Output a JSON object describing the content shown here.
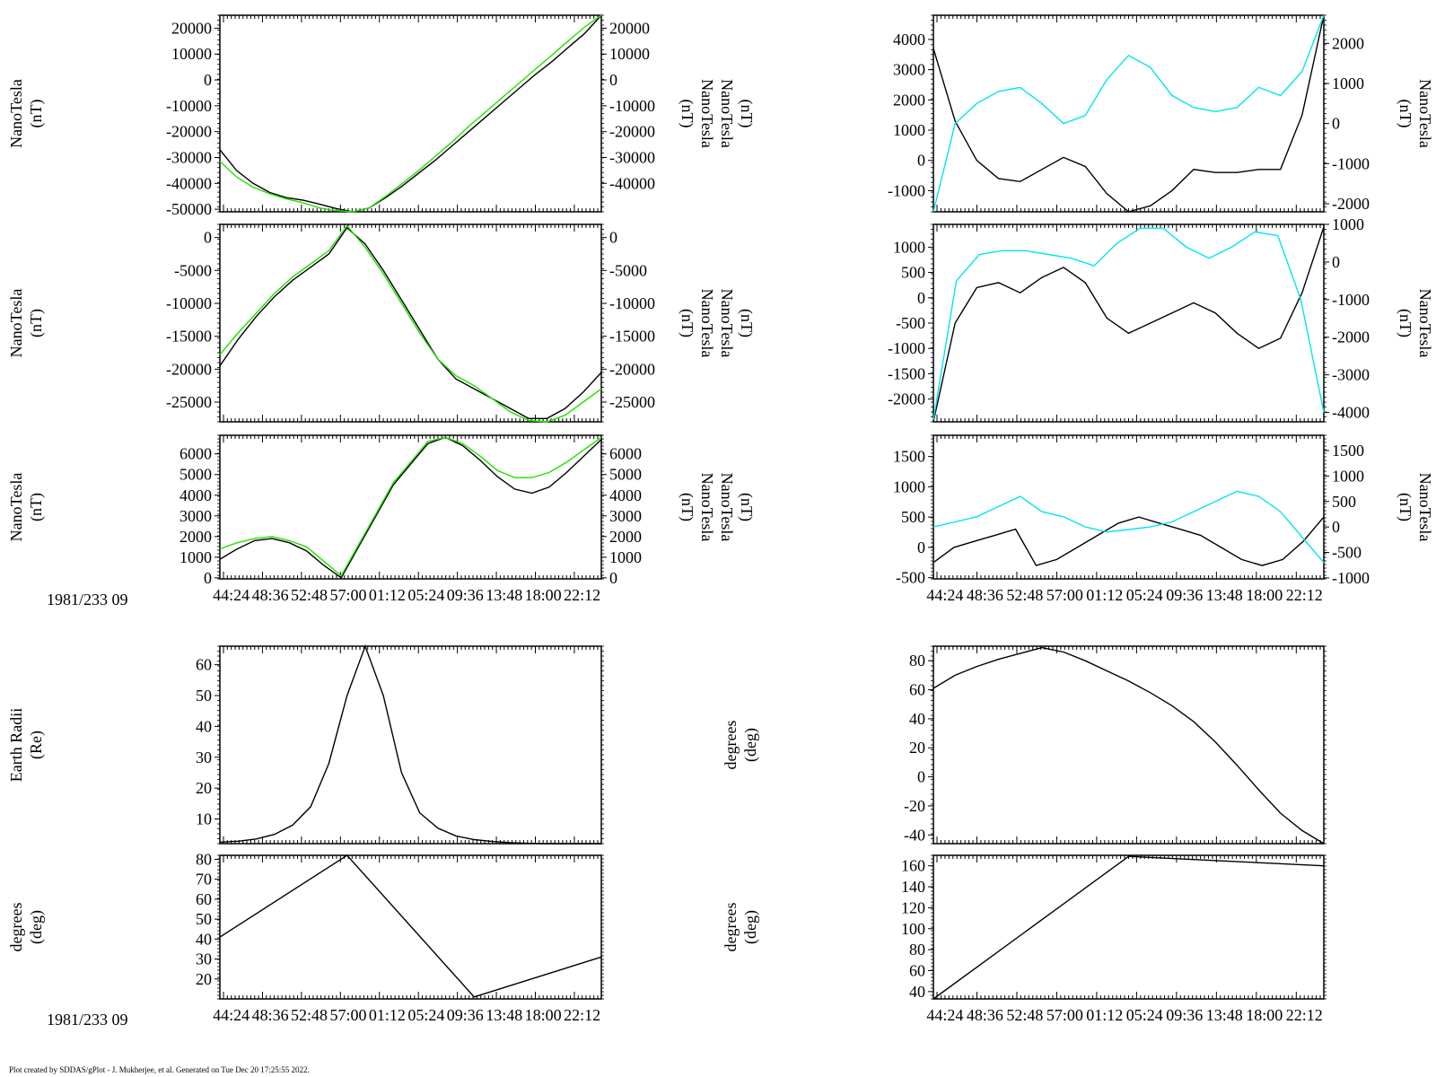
{
  "footer": "Plot created by SDDAS/gPlot - J. Mukherjee, et al.  Generated on Tue Dec 20 17:25:55 2022.",
  "date_labels": [
    "1981/233 09",
    "1981/233 09"
  ],
  "x_tick_labels": [
    "44:24",
    "48:36",
    "52:48",
    "57:00",
    "01:12",
    "05:24",
    "09:36",
    "13:48",
    "18:00",
    "22:12"
  ],
  "colors": {
    "black": "#000000",
    "green": "#22e000",
    "cyan": "#00e5f0"
  },
  "chart_data": [
    {
      "type": "line",
      "ylabel": [
        "NanoTesla",
        "(nT)"
      ],
      "ylabel_right": [
        "NanoTesla",
        "(nT)"
      ],
      "ylim": [
        -51000,
        25000
      ],
      "ylim_right": [
        -51000,
        25000
      ],
      "yticks": [
        20000,
        10000,
        0,
        -10000,
        -20000,
        -30000,
        -40000,
        -50000
      ],
      "yticks_right": [
        20000,
        10000,
        0,
        -10000,
        -20000,
        -30000,
        -40000
      ],
      "series": [
        {
          "color": "#000000",
          "values": [
            -27000,
            -35000,
            -40000,
            -43500,
            -45500,
            -46500,
            -48000,
            -49700,
            -51000,
            -49500,
            -45500,
            -41000,
            -36000,
            -31000,
            -25500,
            -20000,
            -14500,
            -9000,
            -3500,
            2000,
            7000,
            12500,
            18000,
            25000
          ]
        },
        {
          "color": "#22e000",
          "values": [
            -31500,
            -37500,
            -41500,
            -44000,
            -46000,
            -47500,
            -49500,
            -50500,
            -51000,
            -49500,
            -45000,
            -40000,
            -35000,
            -29500,
            -24000,
            -18000,
            -12500,
            -7000,
            -1500,
            4000,
            9500,
            15000,
            20500,
            25000
          ]
        }
      ]
    },
    {
      "type": "line",
      "ylabel": [
        "NanoTesla",
        "(nT)"
      ],
      "ylabel_right": [
        "NanoTesla",
        "(nT)"
      ],
      "ylim": [
        -28000,
        2000
      ],
      "ylim_right": [
        -28000,
        2000
      ],
      "yticks": [
        0,
        -5000,
        -10000,
        -15000,
        -20000,
        -25000
      ],
      "yticks_right": [
        0,
        -5000,
        -10000,
        -15000,
        -20000,
        -25000
      ],
      "series": [
        {
          "color": "#000000",
          "values": [
            -19500,
            -15500,
            -12000,
            -9000,
            -6500,
            -4500,
            -2500,
            1500,
            -1000,
            -5000,
            -9500,
            -14000,
            -18500,
            -21500,
            -23000,
            -24500,
            -26000,
            -27500,
            -27500,
            -26000,
            -23500,
            -20500
          ]
        },
        {
          "color": "#22e000",
          "values": [
            -17800,
            -14500,
            -11500,
            -8500,
            -6000,
            -4000,
            -2000,
            1800,
            -1500,
            -5500,
            -10000,
            -14500,
            -18500,
            -21000,
            -22500,
            -24500,
            -26500,
            -27800,
            -28000,
            -27000,
            -25000,
            -23000
          ]
        }
      ]
    },
    {
      "type": "line",
      "ylabel": [
        "NanoTesla",
        "(nT)"
      ],
      "ylabel_right": [
        "NanoTesla",
        "(nT)"
      ],
      "ylim": [
        -50,
        6900
      ],
      "ylim_right": [
        -50,
        6900
      ],
      "yticks": [
        6000,
        5000,
        4000,
        3000,
        2000,
        1000,
        0
      ],
      "yticks_right": [
        6000,
        5000,
        4000,
        3000,
        2000,
        1000,
        0
      ],
      "series": [
        {
          "color": "#000000",
          "values": [
            900,
            1400,
            1800,
            1900,
            1700,
            1300,
            600,
            0,
            1500,
            3000,
            4500,
            5500,
            6500,
            6800,
            6400,
            5700,
            4900,
            4300,
            4100,
            4400,
            5100,
            5900,
            6700
          ]
        },
        {
          "color": "#22e000",
          "values": [
            1400,
            1700,
            1900,
            2000,
            1800,
            1500,
            800,
            100,
            1600,
            3100,
            4600,
            5600,
            6600,
            6800,
            6500,
            5900,
            5200,
            4850,
            4850,
            5100,
            5600,
            6200,
            6800
          ]
        }
      ]
    },
    {
      "type": "line",
      "ylabel": [],
      "ylabel_right": [
        "NanoTesla",
        "(nT)"
      ],
      "ylim": [
        -1700,
        4800
      ],
      "ylim_right": [
        -2200,
        2700
      ],
      "yticks": [
        4000,
        3000,
        2000,
        1000,
        0,
        -1000
      ],
      "yticks_right": [
        2000,
        1000,
        0,
        -1000,
        -2000
      ],
      "series": [
        {
          "color": "#000000",
          "axis": "left",
          "values": [
            3700,
            1300,
            0,
            -600,
            -700,
            -300,
            100,
            -200,
            -1100,
            -1700,
            -1500,
            -1000,
            -300,
            -400,
            -400,
            -300,
            -300,
            1500,
            4800
          ]
        },
        {
          "color": "#00e5f0",
          "axis": "right",
          "values": [
            -2200,
            0,
            500,
            800,
            900,
            500,
            0,
            200,
            1100,
            1700,
            1400,
            700,
            400,
            300,
            400,
            900,
            700,
            1300,
            2700
          ]
        }
      ]
    },
    {
      "type": "line",
      "ylabel": [],
      "ylabel_right": [
        "NanoTesla",
        "(nT)"
      ],
      "ylim": [
        -2450,
        1450
      ],
      "ylim_right": [
        -4250,
        1000
      ],
      "yticks": [
        1000,
        500,
        0,
        -500,
        -1000,
        -1500,
        -2000
      ],
      "yticks_right": [
        1000,
        0,
        -1000,
        -2000,
        -3000,
        -4000
      ],
      "series": [
        {
          "color": "#000000",
          "axis": "left",
          "values": [
            -2450,
            -500,
            200,
            300,
            100,
            400,
            600,
            300,
            -400,
            -700,
            -500,
            -300,
            -100,
            -300,
            -700,
            -1000,
            -800,
            100,
            1400
          ]
        },
        {
          "color": "#00e5f0",
          "axis": "right",
          "values": [
            -4200,
            -500,
            200,
            300,
            300,
            200,
            100,
            -100,
            500,
            900,
            900,
            400,
            100,
            400,
            800,
            700,
            -1000,
            -4000
          ]
        }
      ]
    },
    {
      "type": "line",
      "ylabel": [],
      "ylabel_right": [
        "NanoTesla",
        "(nT)"
      ],
      "ylim": [
        -520,
        1850
      ],
      "ylim_right": [
        -1020,
        1800
      ],
      "yticks": [
        1500,
        1000,
        500,
        0,
        -500
      ],
      "yticks_right": [
        1500,
        1000,
        500,
        0,
        -500,
        -1000
      ],
      "series": [
        {
          "color": "#000000",
          "axis": "left",
          "values": [
            -250,
            0,
            100,
            200,
            300,
            -300,
            -200,
            0,
            200,
            400,
            500,
            400,
            300,
            200,
            0,
            -200,
            -300,
            -200,
            100,
            500
          ]
        },
        {
          "color": "#00e5f0",
          "axis": "right",
          "values": [
            0,
            100,
            200,
            400,
            600,
            300,
            200,
            0,
            -100,
            -50,
            0,
            100,
            300,
            500,
            700,
            600,
            300,
            -200,
            -700
          ]
        }
      ]
    },
    {
      "type": "line",
      "ylabel": [
        "Earth Radii",
        "(Re)"
      ],
      "ylim": [
        2,
        66
      ],
      "yticks": [
        60,
        50,
        40,
        30,
        20,
        10
      ],
      "series": [
        {
          "color": "#000000",
          "values": [
            2.5,
            2.8,
            3.5,
            5,
            8,
            14,
            28,
            50,
            66,
            50,
            25,
            12,
            7,
            4.5,
            3.3,
            2.7,
            2.3,
            2.1,
            2,
            2,
            2,
            2
          ]
        }
      ]
    },
    {
      "type": "line",
      "ylabel": [
        "degrees",
        "(deg)"
      ],
      "ylim": [
        10,
        82
      ],
      "yticks": [
        80,
        70,
        60,
        50,
        40,
        30,
        20
      ],
      "series": [
        {
          "color": "#000000",
          "values": [
            41,
            82,
            11,
            31
          ]
        }
      ]
    },
    {
      "type": "line",
      "ylabel": [
        "degrees",
        "(deg)"
      ],
      "ylim": [
        -46,
        90
      ],
      "yticks": [
        80,
        60,
        40,
        20,
        0,
        -20,
        -40
      ],
      "series": [
        {
          "color": "#000000",
          "values": [
            61,
            70,
            76,
            81,
            85,
            89,
            86,
            80,
            73,
            66,
            58,
            49,
            38,
            24,
            8,
            -9,
            -25,
            -37,
            -46
          ]
        }
      ]
    },
    {
      "type": "line",
      "ylabel": [
        "degrees",
        "(deg)"
      ],
      "ylim": [
        33,
        170
      ],
      "yticks": [
        160,
        140,
        120,
        100,
        80,
        60,
        40
      ],
      "series": [
        {
          "color": "#000000",
          "values": [
            33,
            169,
            160
          ]
        }
      ]
    }
  ]
}
